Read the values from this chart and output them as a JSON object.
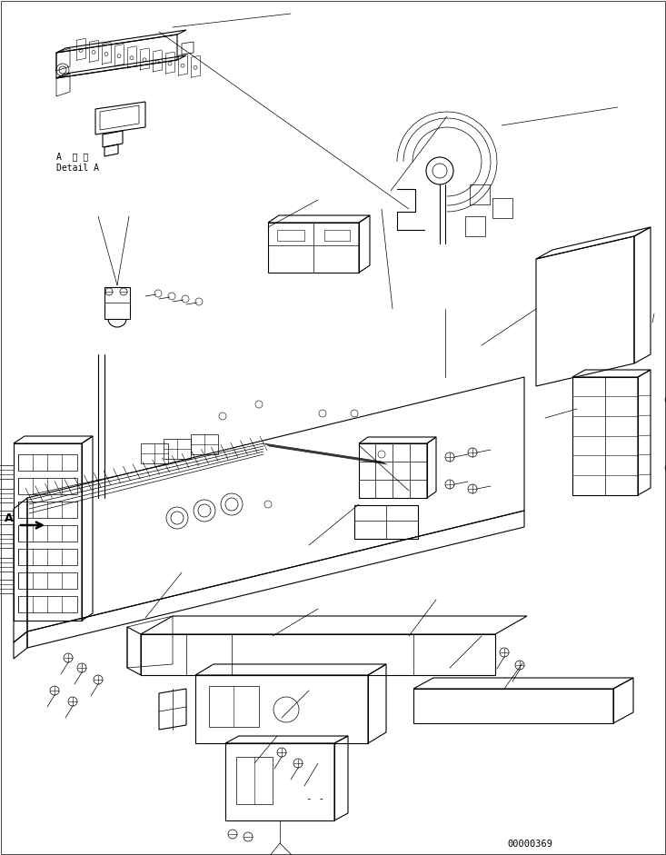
{
  "background_color": "#ffffff",
  "line_color": "#000000",
  "figure_width": 7.33,
  "figure_height": 9.41,
  "dpi": 100,
  "part_number": "00000369",
  "text_A": "A",
  "text_detail_ja": "A 詳細",
  "text_detail_en": "Detail A",
  "dash_text": "- -"
}
